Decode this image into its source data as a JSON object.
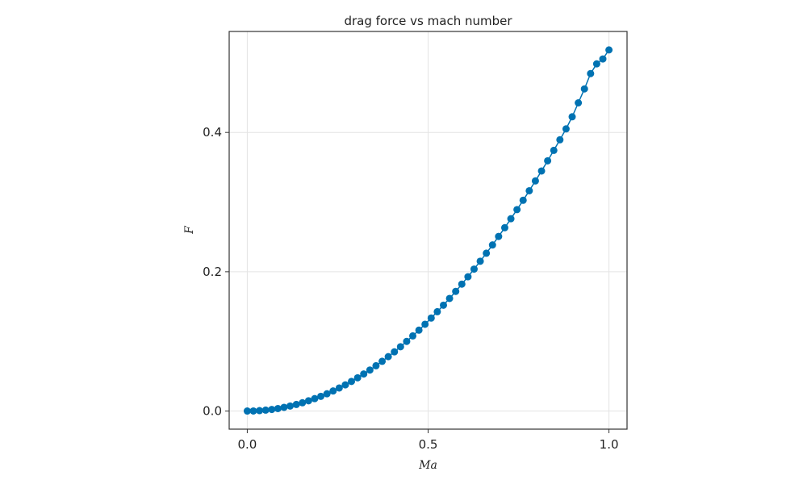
{
  "chart_data": {
    "type": "line",
    "title": "drag force vs mach number",
    "xlabel": "Ma",
    "ylabel": "F",
    "xlim": [
      -0.05,
      1.05
    ],
    "ylim": [
      -0.026,
      0.545
    ],
    "xticks": [
      0.0,
      0.5,
      1.0
    ],
    "xtick_labels": [
      "0.0",
      "0.5",
      "1.0"
    ],
    "yticks": [
      0.0,
      0.2,
      0.4
    ],
    "ytick_labels": [
      "0.0",
      "0.2",
      "0.4"
    ],
    "grid": true,
    "markers": true,
    "series": [
      {
        "color": "#0072b2",
        "x": [
          0.0,
          0.0169,
          0.0339,
          0.0508,
          0.0678,
          0.0847,
          0.1017,
          0.1186,
          0.1356,
          0.1525,
          0.1695,
          0.1864,
          0.2034,
          0.2203,
          0.2373,
          0.2542,
          0.2712,
          0.2881,
          0.3051,
          0.322,
          0.339,
          0.3559,
          0.3729,
          0.3898,
          0.4068,
          0.4237,
          0.4407,
          0.4576,
          0.4746,
          0.4915,
          0.5085,
          0.5254,
          0.5424,
          0.5593,
          0.5763,
          0.5932,
          0.6102,
          0.6271,
          0.6441,
          0.661,
          0.678,
          0.6949,
          0.7119,
          0.7288,
          0.7458,
          0.7627,
          0.7797,
          0.7966,
          0.8136,
          0.8305,
          0.8475,
          0.8644,
          0.8814,
          0.8983,
          0.9153,
          0.9322,
          0.9492,
          0.9661,
          0.9831,
          1.0
        ],
        "y": [
          0.0,
          0.0001,
          0.0006,
          0.0013,
          0.0023,
          0.0036,
          0.0053,
          0.0072,
          0.0094,
          0.0119,
          0.0147,
          0.0178,
          0.0211,
          0.0248,
          0.0288,
          0.0331,
          0.0376,
          0.0425,
          0.0477,
          0.0532,
          0.0589,
          0.065,
          0.0714,
          0.0781,
          0.085,
          0.0923,
          0.1,
          0.1079,
          0.1161,
          0.1246,
          0.1335,
          0.1426,
          0.152,
          0.1617,
          0.1718,
          0.1822,
          0.1928,
          0.2038,
          0.2151,
          0.2266,
          0.2385,
          0.2507,
          0.2632,
          0.2761,
          0.2892,
          0.3026,
          0.3163,
          0.3304,
          0.3447,
          0.3593,
          0.3743,
          0.3895,
          0.4051,
          0.4225,
          0.4425,
          0.4625,
          0.4845,
          0.4985,
          0.5055,
          0.5185
        ]
      }
    ]
  }
}
